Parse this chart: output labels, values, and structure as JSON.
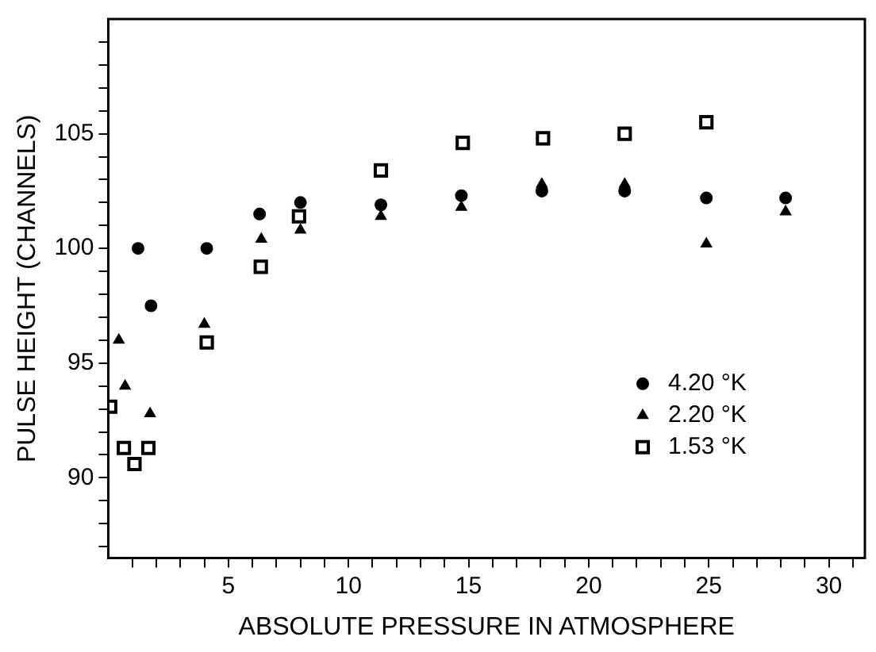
{
  "chart_data": {
    "type": "scatter",
    "xlabel": "ABSOLUTE PRESSURE IN ATMOSPHERE",
    "ylabel": "PULSE HEIGHT (CHANNELS)",
    "xlim": [
      0,
      31.5
    ],
    "ylim": [
      86.5,
      110
    ],
    "xticks": [
      {
        "value": 1,
        "label": null
      },
      {
        "value": 2,
        "label": null
      },
      {
        "value": 3,
        "label": null
      },
      {
        "value": 4,
        "label": null
      },
      5,
      {
        "value": 6,
        "label": null
      },
      {
        "value": 7,
        "label": null
      },
      {
        "value": 8,
        "label": null
      },
      {
        "value": 9,
        "label": null
      },
      10,
      {
        "value": 11,
        "label": null
      },
      {
        "value": 12,
        "label": null
      },
      {
        "value": 13,
        "label": null
      },
      {
        "value": 14,
        "label": null
      },
      15,
      {
        "value": 16,
        "label": null
      },
      {
        "value": 17,
        "label": null
      },
      {
        "value": 18,
        "label": null
      },
      {
        "value": 19,
        "label": null
      },
      20,
      {
        "value": 21,
        "label": null
      },
      {
        "value": 22,
        "label": null
      },
      {
        "value": 23,
        "label": null
      },
      {
        "value": 24,
        "label": null
      },
      25,
      {
        "value": 26,
        "label": null
      },
      {
        "value": 27,
        "label": null
      },
      {
        "value": 28,
        "label": null
      },
      {
        "value": 29,
        "label": null
      },
      30,
      {
        "value": 31,
        "label": null
      }
    ],
    "yticks": [
      {
        "value": 87,
        "label": null
      },
      {
        "value": 88,
        "label": null
      },
      {
        "value": 89,
        "label": null
      },
      90,
      {
        "value": 91,
        "label": null
      },
      {
        "value": 92,
        "label": null
      },
      {
        "value": 93,
        "label": null
      },
      {
        "value": 94,
        "label": null
      },
      95,
      {
        "value": 96,
        "label": null
      },
      {
        "value": 97,
        "label": null
      },
      {
        "value": 98,
        "label": null
      },
      {
        "value": 99,
        "label": null
      },
      100,
      {
        "value": 101,
        "label": null
      },
      {
        "value": 102,
        "label": null
      },
      {
        "value": 103,
        "label": null
      },
      {
        "value": 104,
        "label": null
      },
      105,
      {
        "value": 106,
        "label": null
      },
      {
        "value": 107,
        "label": null
      },
      {
        "value": 108,
        "label": null
      },
      {
        "value": 109,
        "label": null
      }
    ],
    "grid": false,
    "legend": "right",
    "series": [
      {
        "name": "4.20 °K",
        "color": "#000000",
        "marker": "circle",
        "x": [
          1.24,
          1.78,
          4.1,
          6.3,
          8.0,
          11.35,
          14.7,
          18.05,
          21.5,
          24.9,
          28.2
        ],
        "values": [
          100.0,
          97.5,
          100.0,
          101.5,
          102.0,
          101.9,
          102.3,
          102.5,
          102.5,
          102.2,
          102.2
        ]
      },
      {
        "name": "2.20 °K",
        "color": "#000000",
        "marker": "triangle",
        "x": [
          0.44,
          0.7,
          1.74,
          4.0,
          6.37,
          8.0,
          11.35,
          14.7,
          18.05,
          21.5,
          24.9,
          28.2
        ],
        "values": [
          96.0,
          94.0,
          92.8,
          96.7,
          100.4,
          100.8,
          101.4,
          101.8,
          102.8,
          102.8,
          100.2,
          101.6
        ]
      },
      {
        "name": "1.53 °K",
        "color": "#000000",
        "marker": "square",
        "x": [
          0.08,
          0.65,
          1.09,
          1.67,
          4.1,
          6.35,
          7.94,
          11.35,
          14.76,
          18.1,
          21.5,
          24.9
        ],
        "values": [
          93.1,
          91.3,
          90.6,
          91.3,
          95.9,
          99.2,
          101.4,
          103.4,
          104.6,
          104.8,
          105.0,
          105.5
        ]
      }
    ]
  }
}
